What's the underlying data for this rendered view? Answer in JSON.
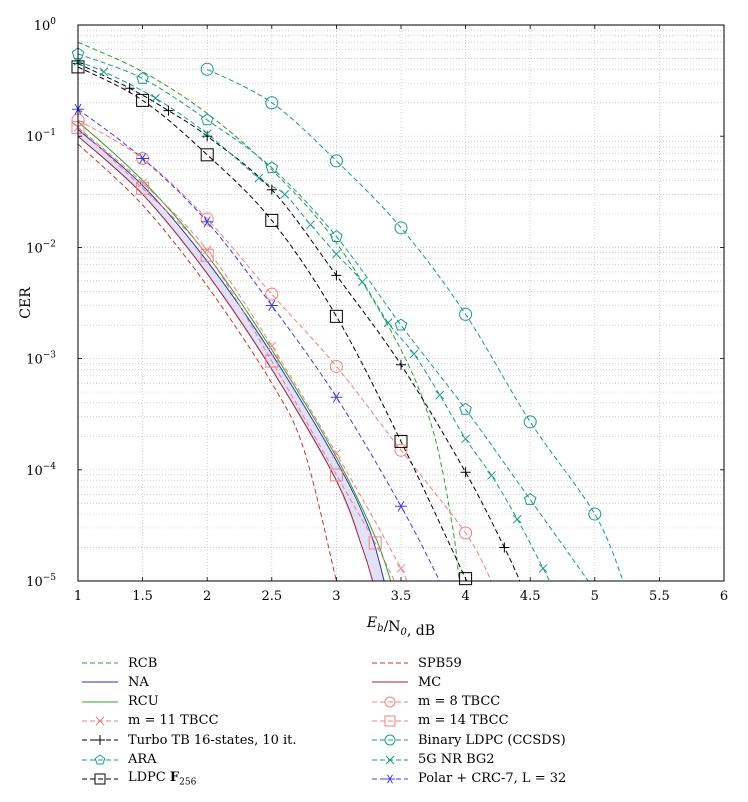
{
  "chart_data": {
    "type": "line",
    "xlabel": "E_b/N_0, dB",
    "ylabel": "CER",
    "xlim": [
      1,
      6
    ],
    "ylim": [
      1e-05,
      1
    ],
    "yscale": "log",
    "grid": true,
    "legend_position": "bottom",
    "x_ticks": [
      "1",
      "1.5",
      "2",
      "2.5",
      "3",
      "3.5",
      "4",
      "4.5",
      "5",
      "5.5",
      "6"
    ],
    "y_ticks": [
      {
        "base": "10",
        "exp": "0"
      },
      {
        "base": "10",
        "exp": "−1"
      },
      {
        "base": "10",
        "exp": "−2"
      },
      {
        "base": "10",
        "exp": "−3"
      },
      {
        "base": "10",
        "exp": "−4"
      },
      {
        "base": "10",
        "exp": "−5"
      }
    ],
    "shaded_region": {
      "between": [
        "NA",
        "MC"
      ],
      "color": "#c8c8f0"
    },
    "series": [
      {
        "name": "RCB",
        "color": "#2ca02c",
        "dash": "5,3",
        "marker": "none",
        "points": [
          [
            1,
            0.7
          ],
          [
            1.5,
            0.38
          ],
          [
            2,
            0.16
          ],
          [
            2.5,
            0.05
          ],
          [
            3,
            0.011
          ],
          [
            3.5,
            0.0012
          ],
          [
            3.75,
            0.00022
          ],
          [
            3.9,
            3e-05
          ],
          [
            3.95,
            1e-05
          ]
        ]
      },
      {
        "name": "SPB59",
        "color": "#c0392b",
        "dash": "5,3",
        "marker": "none",
        "points": [
          [
            1,
            0.085
          ],
          [
            1.5,
            0.024
          ],
          [
            2,
            0.0045
          ],
          [
            2.5,
            0.0006
          ],
          [
            2.75,
            0.00015
          ],
          [
            3,
            1e-05
          ]
        ]
      },
      {
        "name": "NA",
        "color": "#2e2ea8",
        "dash": "",
        "marker": "none",
        "points": [
          [
            1,
            0.115
          ],
          [
            1.5,
            0.036
          ],
          [
            2,
            0.0075
          ],
          [
            2.5,
            0.0011
          ],
          [
            3,
            0.00012
          ],
          [
            3.25,
            3e-05
          ],
          [
            3.37,
            1e-05
          ]
        ]
      },
      {
        "name": "MC",
        "color": "#a0203c",
        "dash": "",
        "marker": "none",
        "points": [
          [
            1,
            0.1
          ],
          [
            1.5,
            0.03
          ],
          [
            2,
            0.0058
          ],
          [
            2.5,
            0.0008
          ],
          [
            3,
            8e-05
          ],
          [
            3.2,
            2e-05
          ],
          [
            3.28,
            1e-05
          ]
        ]
      },
      {
        "name": "RCU",
        "color": "#2ca02c",
        "dash": "",
        "marker": "none",
        "points": [
          [
            1,
            0.135
          ],
          [
            1.5,
            0.04
          ],
          [
            2,
            0.0085
          ],
          [
            2.5,
            0.0012
          ],
          [
            3,
            0.00013
          ],
          [
            3.3,
            2.5e-05
          ],
          [
            3.42,
            1e-05
          ]
        ]
      },
      {
        "name": "m = 8 TBCC",
        "color": "#f08080",
        "dash": "5,3",
        "marker": "circle",
        "points": [
          [
            1,
            0.14
          ],
          [
            1.5,
            0.063
          ],
          [
            2,
            0.018
          ],
          [
            2.5,
            0.0038
          ],
          [
            3,
            0.00085
          ],
          [
            3.5,
            0.00015
          ],
          [
            4,
            2.7e-05
          ],
          [
            4.2,
            1e-05
          ]
        ]
      },
      {
        "name": "m = 11 TBCC",
        "color": "#f08080",
        "dash": "5,3",
        "marker": "x",
        "points": [
          [
            1,
            0.12
          ],
          [
            1.5,
            0.038
          ],
          [
            2,
            0.0095
          ],
          [
            2.5,
            0.0013
          ],
          [
            3,
            0.00014
          ],
          [
            3.5,
            1.3e-05
          ],
          [
            3.52,
            1e-05
          ]
        ]
      },
      {
        "name": "m = 14 TBCC",
        "color": "#f08080",
        "dash": "5,3",
        "marker": "square",
        "points": [
          [
            1,
            0.12
          ],
          [
            1.5,
            0.034
          ],
          [
            2,
            0.0085
          ],
          [
            2.5,
            0.00095
          ],
          [
            3,
            9e-05
          ],
          [
            3.3,
            2.2e-05
          ],
          [
            3.45,
            1e-05
          ]
        ]
      },
      {
        "name": "Turbo TB 16-states, 10 it.",
        "color": "#000000",
        "dash": "5,3",
        "marker": "plus",
        "points": [
          [
            1,
            0.45
          ],
          [
            1.4,
            0.27
          ],
          [
            1.7,
            0.17
          ],
          [
            2,
            0.1
          ],
          [
            2.5,
            0.033
          ],
          [
            3,
            0.0056
          ],
          [
            3.5,
            0.00088
          ],
          [
            4,
            9.5e-05
          ],
          [
            4.3,
            2e-05
          ],
          [
            4.42,
            1e-05
          ]
        ]
      },
      {
        "name": "Binary LDPC (CCSDS)",
        "color": "#1a9a8a",
        "dash": "5,3",
        "marker": "circle",
        "points": [
          [
            2,
            0.4
          ],
          [
            2.5,
            0.2
          ],
          [
            3,
            0.06
          ],
          [
            3.5,
            0.015
          ],
          [
            4,
            0.0025
          ],
          [
            4.5,
            0.00027
          ],
          [
            5,
            4e-05
          ],
          [
            5.22,
            1e-05
          ]
        ]
      },
      {
        "name": "ARA",
        "color": "#1a9a8a",
        "dash": "5,3",
        "marker": "pentagon",
        "points": [
          [
            1,
            0.55
          ],
          [
            1.5,
            0.33
          ],
          [
            2,
            0.14
          ],
          [
            2.5,
            0.052
          ],
          [
            3,
            0.0125
          ],
          [
            3.5,
            0.002
          ],
          [
            4,
            0.00035
          ],
          [
            4.5,
            5.4e-05
          ],
          [
            4.95,
            1e-05
          ]
        ]
      },
      {
        "name": "5G NR BG2",
        "color": "#1a9a8a",
        "dash": "5,3",
        "marker": "x",
        "points": [
          [
            1,
            0.47
          ],
          [
            1.2,
            0.38
          ],
          [
            1.6,
            0.22
          ],
          [
            2,
            0.105
          ],
          [
            2.4,
            0.042
          ],
          [
            2.6,
            0.03
          ],
          [
            2.8,
            0.016
          ],
          [
            3,
            0.0087
          ],
          [
            3.2,
            0.0049
          ],
          [
            3.4,
            0.0021
          ],
          [
            3.6,
            0.0011
          ],
          [
            3.8,
            0.00047
          ],
          [
            4,
            0.00019
          ],
          [
            4.2,
            8.9e-05
          ],
          [
            4.4,
            3.6e-05
          ],
          [
            4.6,
            1.3e-05
          ],
          [
            4.65,
            1e-05
          ]
        ]
      },
      {
        "name": "LDPC F_256",
        "color": "#000000",
        "dash": "5,3",
        "marker": "square",
        "points": [
          [
            1,
            0.42
          ],
          [
            1.5,
            0.21
          ],
          [
            2,
            0.068
          ],
          [
            2.5,
            0.0175
          ],
          [
            3,
            0.0024
          ],
          [
            3.5,
            0.00018
          ],
          [
            4,
            1.05e-05
          ],
          [
            4.01,
            1e-05
          ]
        ]
      },
      {
        "name": "Polar + CRC-7, L = 32",
        "color": "#4040e0",
        "dash": "5,3",
        "marker": "star",
        "points": [
          [
            1,
            0.175
          ],
          [
            1.5,
            0.063
          ],
          [
            2,
            0.017
          ],
          [
            2.5,
            0.003
          ],
          [
            3,
            0.00045
          ],
          [
            3.5,
            4.7e-05
          ],
          [
            3.8,
            1e-05
          ]
        ]
      }
    ],
    "legend": {
      "left": [
        "RCB",
        "NA",
        "RCU",
        "m = 11 TBCC",
        "Turbo TB 16-states, 10 it.",
        "ARA",
        "LDPC F_256"
      ],
      "right": [
        "SPB59",
        "MC",
        "m = 8 TBCC",
        "m = 14 TBCC",
        "Binary LDPC (CCSDS)",
        "5G NR BG2",
        "Polar + CRC-7, L = 32"
      ]
    }
  }
}
